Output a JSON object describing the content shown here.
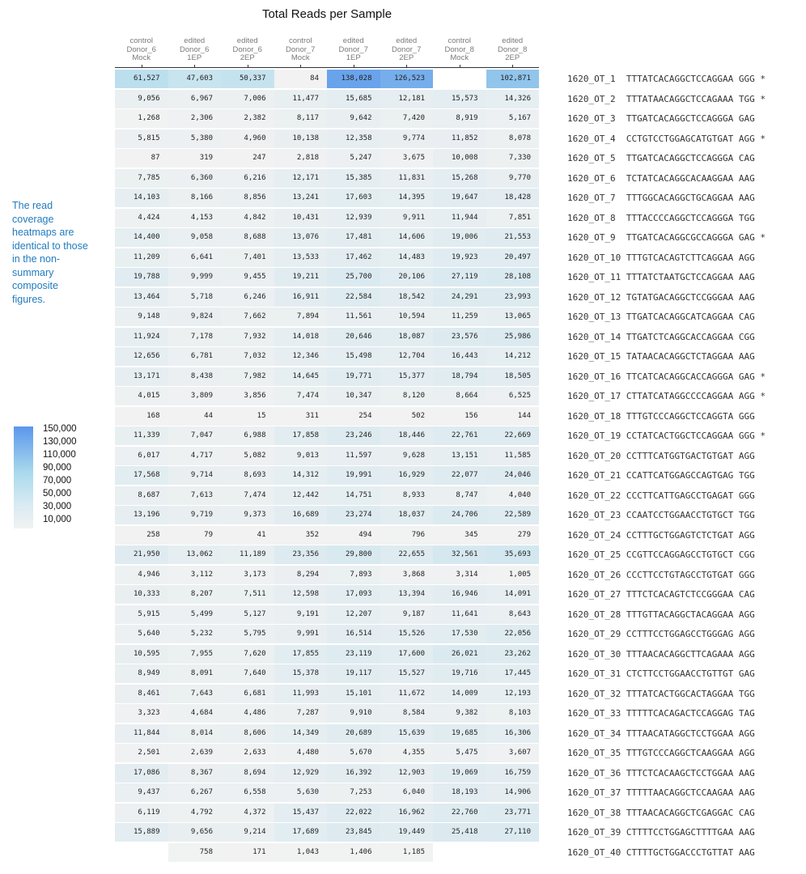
{
  "chart_data": {
    "type": "heatmap",
    "title": "Total Reads per Sample",
    "columns": [
      [
        "control",
        "Donor_6",
        "Mock"
      ],
      [
        "edited",
        "Donor_6",
        "1EP"
      ],
      [
        "edited",
        "Donor_6",
        "2EP"
      ],
      [
        "control",
        "Donor_7",
        "Mock"
      ],
      [
        "edited",
        "Donor_7",
        "1EP"
      ],
      [
        "edited",
        "Donor_7",
        "2EP"
      ],
      [
        "control",
        "Donor_8",
        "Mock"
      ],
      [
        "edited",
        "Donor_8",
        "2EP"
      ]
    ],
    "rows": [
      {
        "site": "1620_OT_1",
        "seq": "TTTATCACAGGCTCCAGGAA",
        "pam": "GGG",
        "star": "*",
        "values": [
          61527,
          47603,
          50337,
          84,
          138028,
          126523,
          null,
          102871
        ]
      },
      {
        "site": "1620_OT_2",
        "seq": "TTTATAACAGGCTCCAGAAA",
        "pam": "TGG",
        "star": "*",
        "values": [
          9056,
          6967,
          7006,
          11477,
          15685,
          12181,
          15573,
          14326
        ]
      },
      {
        "site": "1620_OT_3",
        "seq": "TTGATCACAGGCTCCAGGGA",
        "pam": "GAG",
        "star": "",
        "values": [
          1268,
          2306,
          2382,
          8117,
          9642,
          7420,
          8919,
          5167
        ]
      },
      {
        "site": "1620_OT_4",
        "seq": "CCTGTCCTGGAGCATGTGAT",
        "pam": "AGG",
        "star": "*",
        "values": [
          5815,
          5380,
          4960,
          10138,
          12358,
          9774,
          11852,
          8078
        ]
      },
      {
        "site": "1620_OT_5",
        "seq": "TTGATCACAGGCTCCAGGGA",
        "pam": "CAG",
        "star": "",
        "values": [
          87,
          319,
          247,
          2818,
          5247,
          3675,
          10008,
          7330
        ]
      },
      {
        "site": "1620_OT_6",
        "seq": "TCTATCACAGGCACAAGGAA",
        "pam": "AAG",
        "star": "",
        "values": [
          7785,
          6360,
          6216,
          12171,
          15385,
          11831,
          15268,
          9770
        ]
      },
      {
        "site": "1620_OT_7",
        "seq": "TTTGGCACAGGCTGCAGGAA",
        "pam": "AAG",
        "star": "",
        "values": [
          14103,
          8166,
          8856,
          13241,
          17603,
          14395,
          19647,
          18428
        ]
      },
      {
        "site": "1620_OT_8",
        "seq": "TTTACCCCAGGCTCCAGGGA",
        "pam": "TGG",
        "star": "",
        "values": [
          4424,
          4153,
          4842,
          10431,
          12939,
          9911,
          11944,
          7851
        ]
      },
      {
        "site": "1620_OT_9",
        "seq": "TTGATCACAGGCGCCAGGGA",
        "pam": "GAG",
        "star": "*",
        "values": [
          14400,
          9058,
          8688,
          13076,
          17481,
          14606,
          19006,
          21553
        ]
      },
      {
        "site": "1620_OT_10",
        "seq": "TTTGTCACAGTCTTCAGGAA",
        "pam": "AGG",
        "star": "",
        "values": [
          11209,
          6641,
          7401,
          13533,
          17462,
          14483,
          19923,
          20497
        ]
      },
      {
        "site": "1620_OT_11",
        "seq": "TTTATCTAATGCTCCAGGAA",
        "pam": "AAG",
        "star": "",
        "values": [
          19788,
          9999,
          9455,
          19211,
          25700,
          20106,
          27119,
          28108
        ]
      },
      {
        "site": "1620_OT_12",
        "seq": "TGTATGACAGGCTCCGGGAA",
        "pam": "AAG",
        "star": "",
        "values": [
          13464,
          5718,
          6246,
          16911,
          22584,
          18542,
          24291,
          23993
        ]
      },
      {
        "site": "1620_OT_13",
        "seq": "TTGATCACAGGCATCAGGAA",
        "pam": "CAG",
        "star": "",
        "values": [
          9148,
          9824,
          7662,
          7894,
          11561,
          10594,
          11259,
          13065
        ]
      },
      {
        "site": "1620_OT_14",
        "seq": "TTGATCTCAGGCACCAGGAA",
        "pam": "CGG",
        "star": "",
        "values": [
          11924,
          7178,
          7932,
          14018,
          20646,
          18087,
          23576,
          25986
        ]
      },
      {
        "site": "1620_OT_15",
        "seq": "TATAACACAGGCTCTAGGAA",
        "pam": "AAG",
        "star": "",
        "values": [
          12656,
          6781,
          7032,
          12346,
          15498,
          12704,
          16443,
          14212
        ]
      },
      {
        "site": "1620_OT_16",
        "seq": "TTCATCACAGGCACCAGGGA",
        "pam": "GAG",
        "star": "*",
        "values": [
          13171,
          8438,
          7982,
          14645,
          19771,
          15377,
          18794,
          18505
        ]
      },
      {
        "site": "1620_OT_17",
        "seq": "CTTATCATAGGCCCCAGGAA",
        "pam": "AGG",
        "star": "*",
        "values": [
          4015,
          3809,
          3856,
          7474,
          10347,
          8120,
          8664,
          6525
        ]
      },
      {
        "site": "1620_OT_18",
        "seq": "TTTGTCCCAGGCTCCAGGTA",
        "pam": "GGG",
        "star": "",
        "values": [
          168,
          44,
          15,
          311,
          254,
          502,
          156,
          144
        ]
      },
      {
        "site": "1620_OT_19",
        "seq": "CCTATCACTGGCTCCAGGAA",
        "pam": "GGG",
        "star": "*",
        "values": [
          11339,
          7047,
          6988,
          17858,
          23246,
          18446,
          22761,
          22669
        ]
      },
      {
        "site": "1620_OT_20",
        "seq": "CCTTTCATGGTGACTGTGAT",
        "pam": "AGG",
        "star": "",
        "values": [
          6017,
          4717,
          5082,
          9013,
          11597,
          9628,
          13151,
          11585
        ]
      },
      {
        "site": "1620_OT_21",
        "seq": "CCATTCATGGAGCCAGTGAG",
        "pam": "TGG",
        "star": "",
        "values": [
          17568,
          9714,
          8693,
          14312,
          19991,
          16929,
          22077,
          24046
        ]
      },
      {
        "site": "1620_OT_22",
        "seq": "CCCTTCATTGAGCCTGAGAT",
        "pam": "GGG",
        "star": "",
        "values": [
          8687,
          7613,
          7474,
          12442,
          14751,
          8933,
          8747,
          4040
        ]
      },
      {
        "site": "1620_OT_23",
        "seq": "CCAATCCTGGAACCTGTGCT",
        "pam": "TGG",
        "star": "",
        "values": [
          13196,
          9719,
          9373,
          16689,
          23274,
          18037,
          24706,
          22589
        ]
      },
      {
        "site": "1620_OT_24",
        "seq": "CCTTTGCTGGAGTCTCTGAT",
        "pam": "AGG",
        "star": "",
        "values": [
          258,
          79,
          41,
          352,
          494,
          796,
          345,
          279
        ]
      },
      {
        "site": "1620_OT_25",
        "seq": "CCGTTCCAGGAGCCTGTGCT",
        "pam": "CGG",
        "star": "",
        "values": [
          21950,
          13062,
          11189,
          23356,
          29800,
          22655,
          32561,
          35693
        ]
      },
      {
        "site": "1620_OT_26",
        "seq": "CCCTTCCTGTAGCCTGTGAT",
        "pam": "GGG",
        "star": "",
        "values": [
          4946,
          3112,
          3173,
          8294,
          7893,
          3868,
          3314,
          1005
        ]
      },
      {
        "site": "1620_OT_27",
        "seq": "TTTCTCACAGTCTCCGGGAA",
        "pam": "CAG",
        "star": "",
        "values": [
          10333,
          8207,
          7511,
          12598,
          17093,
          13394,
          16946,
          14091
        ]
      },
      {
        "site": "1620_OT_28",
        "seq": "TTTGTTACAGGCTACAGGAA",
        "pam": "AGG",
        "star": "",
        "values": [
          5915,
          5499,
          5127,
          9191,
          12207,
          9187,
          11641,
          8643
        ]
      },
      {
        "site": "1620_OT_29",
        "seq": "CCTTTCCTGGAGCCTGGGAG",
        "pam": "AGG",
        "star": "",
        "values": [
          5640,
          5232,
          5795,
          9991,
          16514,
          15526,
          17530,
          22056
        ]
      },
      {
        "site": "1620_OT_30",
        "seq": "TTTAACACAGGCTTCAGAAA",
        "pam": "AGG",
        "star": "",
        "values": [
          10595,
          7955,
          7620,
          17855,
          23119,
          17600,
          26021,
          23262
        ]
      },
      {
        "site": "1620_OT_31",
        "seq": "CTCTTCCTGGAACCTGTTGT",
        "pam": "GAG",
        "star": "",
        "values": [
          8949,
          8091,
          7640,
          15378,
          19117,
          15527,
          19716,
          17445
        ]
      },
      {
        "site": "1620_OT_32",
        "seq": "TTTATCACTGGCACTAGGAA",
        "pam": "TGG",
        "star": "",
        "values": [
          8461,
          7643,
          6681,
          11993,
          15101,
          11672,
          14009,
          12193
        ]
      },
      {
        "site": "1620_OT_33",
        "seq": "TTTTTCACAGACTCCAGGAG",
        "pam": "TAG",
        "star": "",
        "values": [
          3323,
          4684,
          4486,
          7287,
          9910,
          8584,
          9382,
          8103
        ]
      },
      {
        "site": "1620_OT_34",
        "seq": "TTTAACATAGGCTCCTGGAA",
        "pam": "AGG",
        "star": "",
        "values": [
          11844,
          8014,
          8606,
          14349,
          20689,
          15639,
          19685,
          16306
        ]
      },
      {
        "site": "1620_OT_35",
        "seq": "TTTGTCCCAGGCTCAAGGAA",
        "pam": "AGG",
        "star": "",
        "values": [
          2501,
          2639,
          2633,
          4480,
          5670,
          4355,
          5475,
          3607
        ]
      },
      {
        "site": "1620_OT_36",
        "seq": "TTTCTCACAAGCTCCTGGAA",
        "pam": "AAG",
        "star": "",
        "values": [
          17086,
          8367,
          8694,
          12929,
          16392,
          12903,
          19069,
          16759
        ]
      },
      {
        "site": "1620_OT_37",
        "seq": "TTTTTAACAGGCTCCAAGAA",
        "pam": "AAG",
        "star": "",
        "values": [
          9437,
          6267,
          6558,
          5630,
          7253,
          6040,
          18193,
          14906
        ]
      },
      {
        "site": "1620_OT_38",
        "seq": "TTTAACACAGGCTCGAGGAC",
        "pam": "CAG",
        "star": "",
        "values": [
          6119,
          4792,
          4372,
          15437,
          22022,
          16962,
          22760,
          23771
        ]
      },
      {
        "site": "1620_OT_39",
        "seq": "CTTTTCCTGGAGCTTTTGAA",
        "pam": "AAG",
        "star": "",
        "values": [
          15889,
          9656,
          9214,
          17689,
          23845,
          19449,
          25418,
          27110
        ]
      },
      {
        "site": "1620_OT_40",
        "seq": "CTTTTGCTGGACCCTGTTAT",
        "pam": "AAG",
        "star": "",
        "values": [
          null,
          758,
          171,
          1043,
          1406,
          1185,
          null,
          null
        ]
      }
    ],
    "color_scale": {
      "min_color": "#f2f2f2",
      "max_color": "#5b97ec",
      "domain": [
        0,
        150000
      ],
      "legend_labels": [
        "150,000",
        "130,000",
        "110,000",
        "90,000",
        "70,000",
        "50,000",
        "30,000",
        "10,000"
      ]
    }
  },
  "note": "The read coverage heatmaps are identical to those in the non-summary composite figures."
}
